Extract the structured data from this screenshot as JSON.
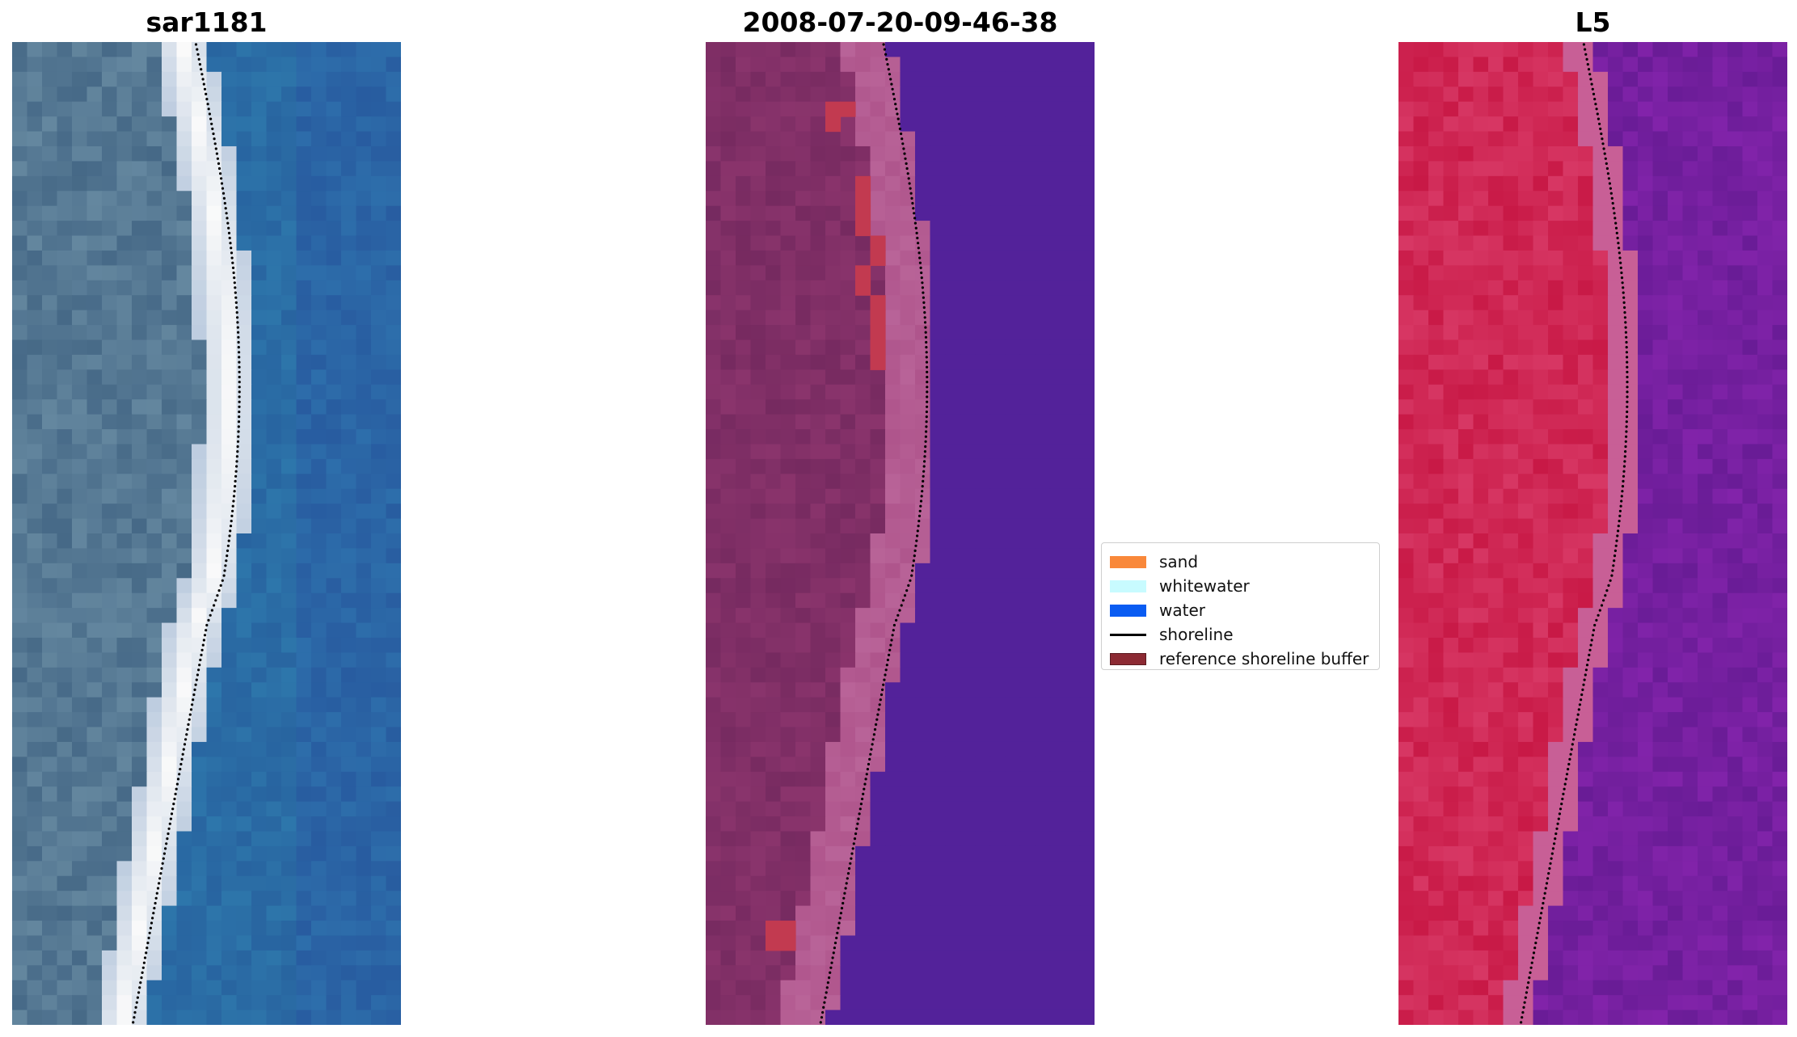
{
  "panels": [
    {
      "title": "sar1181"
    },
    {
      "title": "2008-07-20-09-46-38"
    },
    {
      "title": "L5"
    }
  ],
  "legend": {
    "items": [
      {
        "label": "sand",
        "color": "#f9883a",
        "kind": "patch"
      },
      {
        "label": "whitewater",
        "color": "#c8fbff",
        "kind": "patch"
      },
      {
        "label": "water",
        "color": "#0a5cf2",
        "kind": "patch"
      },
      {
        "label": "shoreline",
        "color": "#000000",
        "kind": "line"
      },
      {
        "label": "reference shoreline buffer",
        "color": "#8c2a33",
        "kind": "patch"
      }
    ]
  },
  "colors": {
    "rgb_water": "#2f6aa3",
    "rgb_whitewater": "#f2f0f6",
    "class_water": "#53229a",
    "class_land": "#7a2a62",
    "class_buffer": "#c23a50",
    "index_land": "#c41c45",
    "index_water": "#6c1c98"
  }
}
